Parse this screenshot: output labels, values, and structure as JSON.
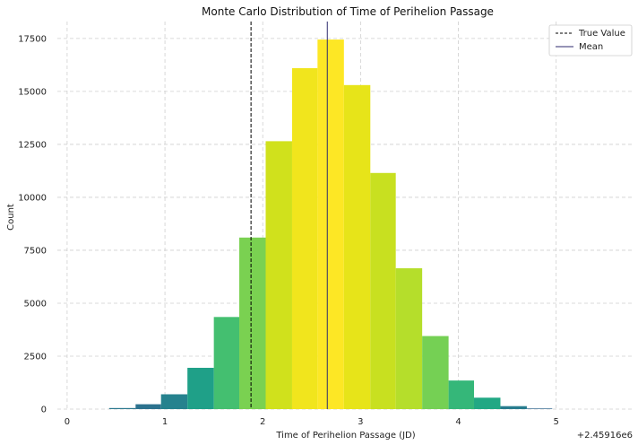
{
  "chart_data": {
    "type": "bar",
    "title": "Monte Carlo Distribution of Time of Perihelion Passage",
    "xlabel": "Time of Perihelion Passage (JD)",
    "ylabel": "Count",
    "x_offset_label": "+2.45916e6",
    "xlim": [
      -0.1,
      5.8
    ],
    "ylim": [
      0,
      18300
    ],
    "grid": true,
    "legend_position": "top-right",
    "x_ticks": [
      {
        "value": 0,
        "label": "0"
      },
      {
        "value": 1,
        "label": "1"
      },
      {
        "value": 2,
        "label": "2"
      },
      {
        "value": 3,
        "label": "3"
      },
      {
        "value": 4,
        "label": "4"
      },
      {
        "value": 5,
        "label": "5"
      }
    ],
    "y_ticks": [
      {
        "value": 0,
        "label": "0"
      },
      {
        "value": 2500,
        "label": "2500"
      },
      {
        "value": 5000,
        "label": "5000"
      },
      {
        "value": 7500,
        "label": "7500"
      },
      {
        "value": 10000,
        "label": "10000"
      },
      {
        "value": 12500,
        "label": "12500"
      },
      {
        "value": 15000,
        "label": "15000"
      },
      {
        "value": 17500,
        "label": "17500"
      }
    ],
    "bins": [
      {
        "x0": 0.43,
        "x1": 0.7,
        "count": 50,
        "color": "#2a788e"
      },
      {
        "x0": 0.7,
        "x1": 0.96,
        "count": 230,
        "color": "#2c728e"
      },
      {
        "x0": 0.96,
        "x1": 1.23,
        "count": 700,
        "color": "#26828e"
      },
      {
        "x0": 1.23,
        "x1": 1.5,
        "count": 1950,
        "color": "#1fa088"
      },
      {
        "x0": 1.5,
        "x1": 1.76,
        "count": 4350,
        "color": "#44bf70"
      },
      {
        "x0": 1.76,
        "x1": 2.03,
        "count": 8100,
        "color": "#7ad151"
      },
      {
        "x0": 2.03,
        "x1": 2.3,
        "count": 12650,
        "color": "#d0e11c"
      },
      {
        "x0": 2.3,
        "x1": 2.56,
        "count": 16100,
        "color": "#f1e51d"
      },
      {
        "x0": 2.56,
        "x1": 2.83,
        "count": 17450,
        "color": "#fde725"
      },
      {
        "x0": 2.83,
        "x1": 3.1,
        "count": 15300,
        "color": "#e7e419"
      },
      {
        "x0": 3.1,
        "x1": 3.36,
        "count": 11150,
        "color": "#c8e020"
      },
      {
        "x0": 3.36,
        "x1": 3.63,
        "count": 6650,
        "color": "#b5de2b"
      },
      {
        "x0": 3.63,
        "x1": 3.9,
        "count": 3450,
        "color": "#75d054"
      },
      {
        "x0": 3.9,
        "x1": 4.16,
        "count": 1350,
        "color": "#35b779"
      },
      {
        "x0": 4.16,
        "x1": 4.43,
        "count": 540,
        "color": "#22a884"
      },
      {
        "x0": 4.43,
        "x1": 4.7,
        "count": 140,
        "color": "#287c8e"
      },
      {
        "x0": 4.7,
        "x1": 4.96,
        "count": 30,
        "color": "#31668e"
      }
    ],
    "lines": [
      {
        "name": "True Value",
        "x": 1.88,
        "style": "dashed",
        "color": "#000000"
      },
      {
        "name": "Mean",
        "x": 2.66,
        "style": "solid",
        "color": "#2d2a6e"
      }
    ],
    "legend": [
      {
        "label": "True Value",
        "style": "dashed",
        "color": "#000000"
      },
      {
        "label": "Mean",
        "style": "solid",
        "color": "#2d2a6e"
      }
    ]
  }
}
